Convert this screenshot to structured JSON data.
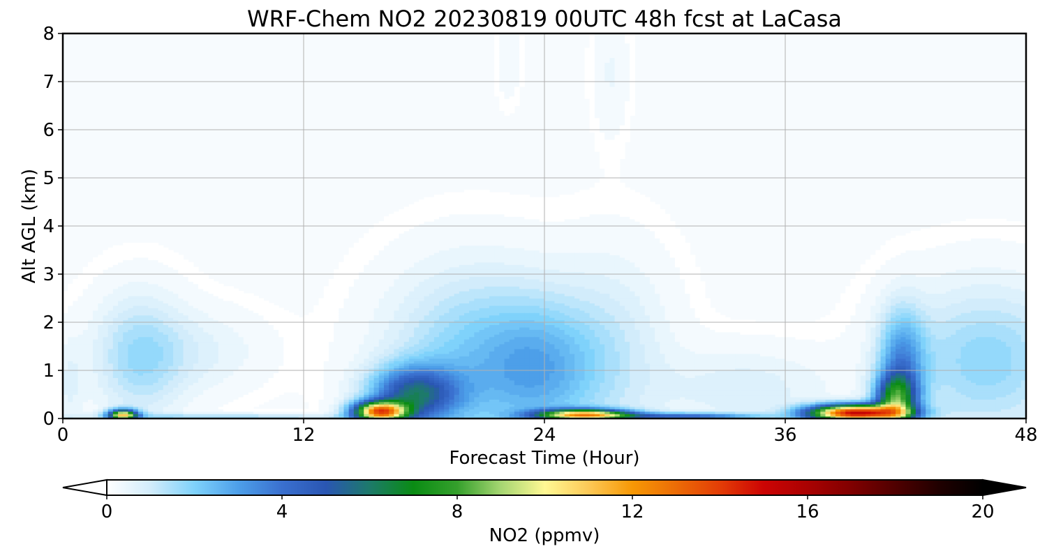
{
  "chart_data": {
    "type": "contour",
    "title": "WRF-Chem NO2  20230819 00UTC 48h fcst at LaCasa",
    "xlabel": "Forecast Time (Hour)",
    "ylabel": "Alt AGL (km)",
    "xlim": [
      0,
      48
    ],
    "ylim": [
      0,
      8
    ],
    "xticks": [
      0,
      12,
      24,
      36,
      48
    ],
    "yticks": [
      0,
      1,
      2,
      3,
      4,
      5,
      6,
      7,
      8
    ],
    "grid": true,
    "colorbar": {
      "label": "NO2  (ppmv)",
      "range": [
        0,
        20
      ],
      "ticks": [
        0,
        4,
        8,
        12,
        16,
        20
      ],
      "extend": "both",
      "orientation": "horizontal",
      "placement": "bottom",
      "colors": [
        {
          "v": 0,
          "c": "#ffffff"
        },
        {
          "v": 1,
          "c": "#d2ecfb"
        },
        {
          "v": 2,
          "c": "#7fd2fb"
        },
        {
          "v": 3,
          "c": "#4d9fe9"
        },
        {
          "v": 4,
          "c": "#3a70cf"
        },
        {
          "v": 5,
          "c": "#2a56b3"
        },
        {
          "v": 6,
          "c": "#1d7a6a"
        },
        {
          "v": 7,
          "c": "#0a8c14"
        },
        {
          "v": 8,
          "c": "#35a02c"
        },
        {
          "v": 9,
          "c": "#a6d672"
        },
        {
          "v": 10,
          "c": "#fff894"
        },
        {
          "v": 11,
          "c": "#fcc957"
        },
        {
          "v": 12,
          "c": "#f79805"
        },
        {
          "v": 13,
          "c": "#ec6c06"
        },
        {
          "v": 14,
          "c": "#e33d06"
        },
        {
          "v": 15,
          "c": "#cc0404"
        },
        {
          "v": 16,
          "c": "#aa0202"
        },
        {
          "v": 17,
          "c": "#800000"
        },
        {
          "v": 18,
          "c": "#500000"
        },
        {
          "v": 19,
          "c": "#200000"
        },
        {
          "v": 20,
          "c": "#000000"
        }
      ]
    },
    "features": [
      {
        "t": 3,
        "z": 0.08,
        "amp": 10.0,
        "sx": 0.5,
        "sz": 0.08
      },
      {
        "t": 3.8,
        "z": 1.3,
        "amp": 1.6,
        "sx": 1.6,
        "sz": 0.9
      },
      {
        "t": 7,
        "z": 1.4,
        "amp": 0.6,
        "sx": 2.2,
        "sz": 0.6
      },
      {
        "t": 8,
        "z": 0.04,
        "amp": 1.5,
        "sx": 5.0,
        "sz": 0.05
      },
      {
        "t": 15.8,
        "z": 0.15,
        "amp": 12.0,
        "sx": 0.9,
        "sz": 0.14
      },
      {
        "t": 17.5,
        "z": 0.5,
        "amp": 5.0,
        "sx": 1.5,
        "sz": 0.4
      },
      {
        "t": 20.5,
        "z": 1.2,
        "amp": 2.0,
        "sx": 3.0,
        "sz": 1.3
      },
      {
        "t": 24,
        "z": 1.0,
        "amp": 1.8,
        "sx": 2.0,
        "sz": 1.0
      },
      {
        "t": 26,
        "z": 0.08,
        "amp": 11.0,
        "sx": 1.6,
        "sz": 0.08
      },
      {
        "t": 27.5,
        "z": 1.4,
        "amp": 0.9,
        "sx": 2.0,
        "sz": 1.4
      },
      {
        "t": 31,
        "z": 0.05,
        "amp": 4.0,
        "sx": 2.5,
        "sz": 0.05
      },
      {
        "t": 34,
        "z": 0.6,
        "amp": 0.8,
        "sx": 3.0,
        "sz": 0.6
      },
      {
        "t": 39.5,
        "z": 0.12,
        "amp": 15.0,
        "sx": 1.6,
        "sz": 0.12
      },
      {
        "t": 41.5,
        "z": 0.4,
        "amp": 6.0,
        "sx": 0.7,
        "sz": 0.35
      },
      {
        "t": 41.8,
        "z": 1.1,
        "amp": 3.0,
        "sx": 0.8,
        "sz": 0.8
      },
      {
        "t": 46,
        "z": 1.2,
        "amp": 1.8,
        "sx": 3.0,
        "sz": 1.1
      },
      {
        "t": 0.3,
        "z": 0.7,
        "amp": 0.6,
        "sx": 0.5,
        "sz": 0.7
      },
      {
        "t": 22.2,
        "z": 7.5,
        "amp": 0.35,
        "sx": 0.4,
        "sz": 0.6
      },
      {
        "t": 27.3,
        "z": 7.2,
        "amp": 0.4,
        "sx": 0.6,
        "sz": 0.9
      }
    ]
  }
}
